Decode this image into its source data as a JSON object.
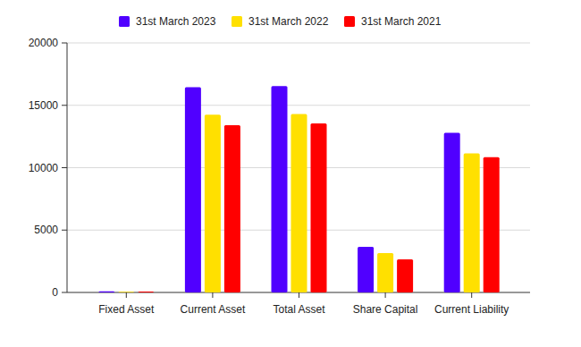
{
  "chart_data": {
    "type": "bar",
    "categories": [
      "Fixed Asset",
      "Current Asset",
      "Total Asset",
      "Share Capital",
      "Current Liability"
    ],
    "series": [
      {
        "name": "31st March 2023",
        "color": "#5000ff",
        "values": [
          90,
          16450,
          16550,
          3650,
          12800
        ]
      },
      {
        "name": "31st March 2022",
        "color": "#ffe000",
        "values": [
          50,
          14250,
          14300,
          3150,
          11150
        ]
      },
      {
        "name": "31st March 2021",
        "color": "#ff0000",
        "values": [
          70,
          13400,
          13550,
          2650,
          10850
        ]
      }
    ],
    "ylim": [
      0,
      20000
    ],
    "yticks": [
      0,
      5000,
      10000,
      15000,
      20000
    ],
    "grid": true,
    "legend": "top"
  }
}
